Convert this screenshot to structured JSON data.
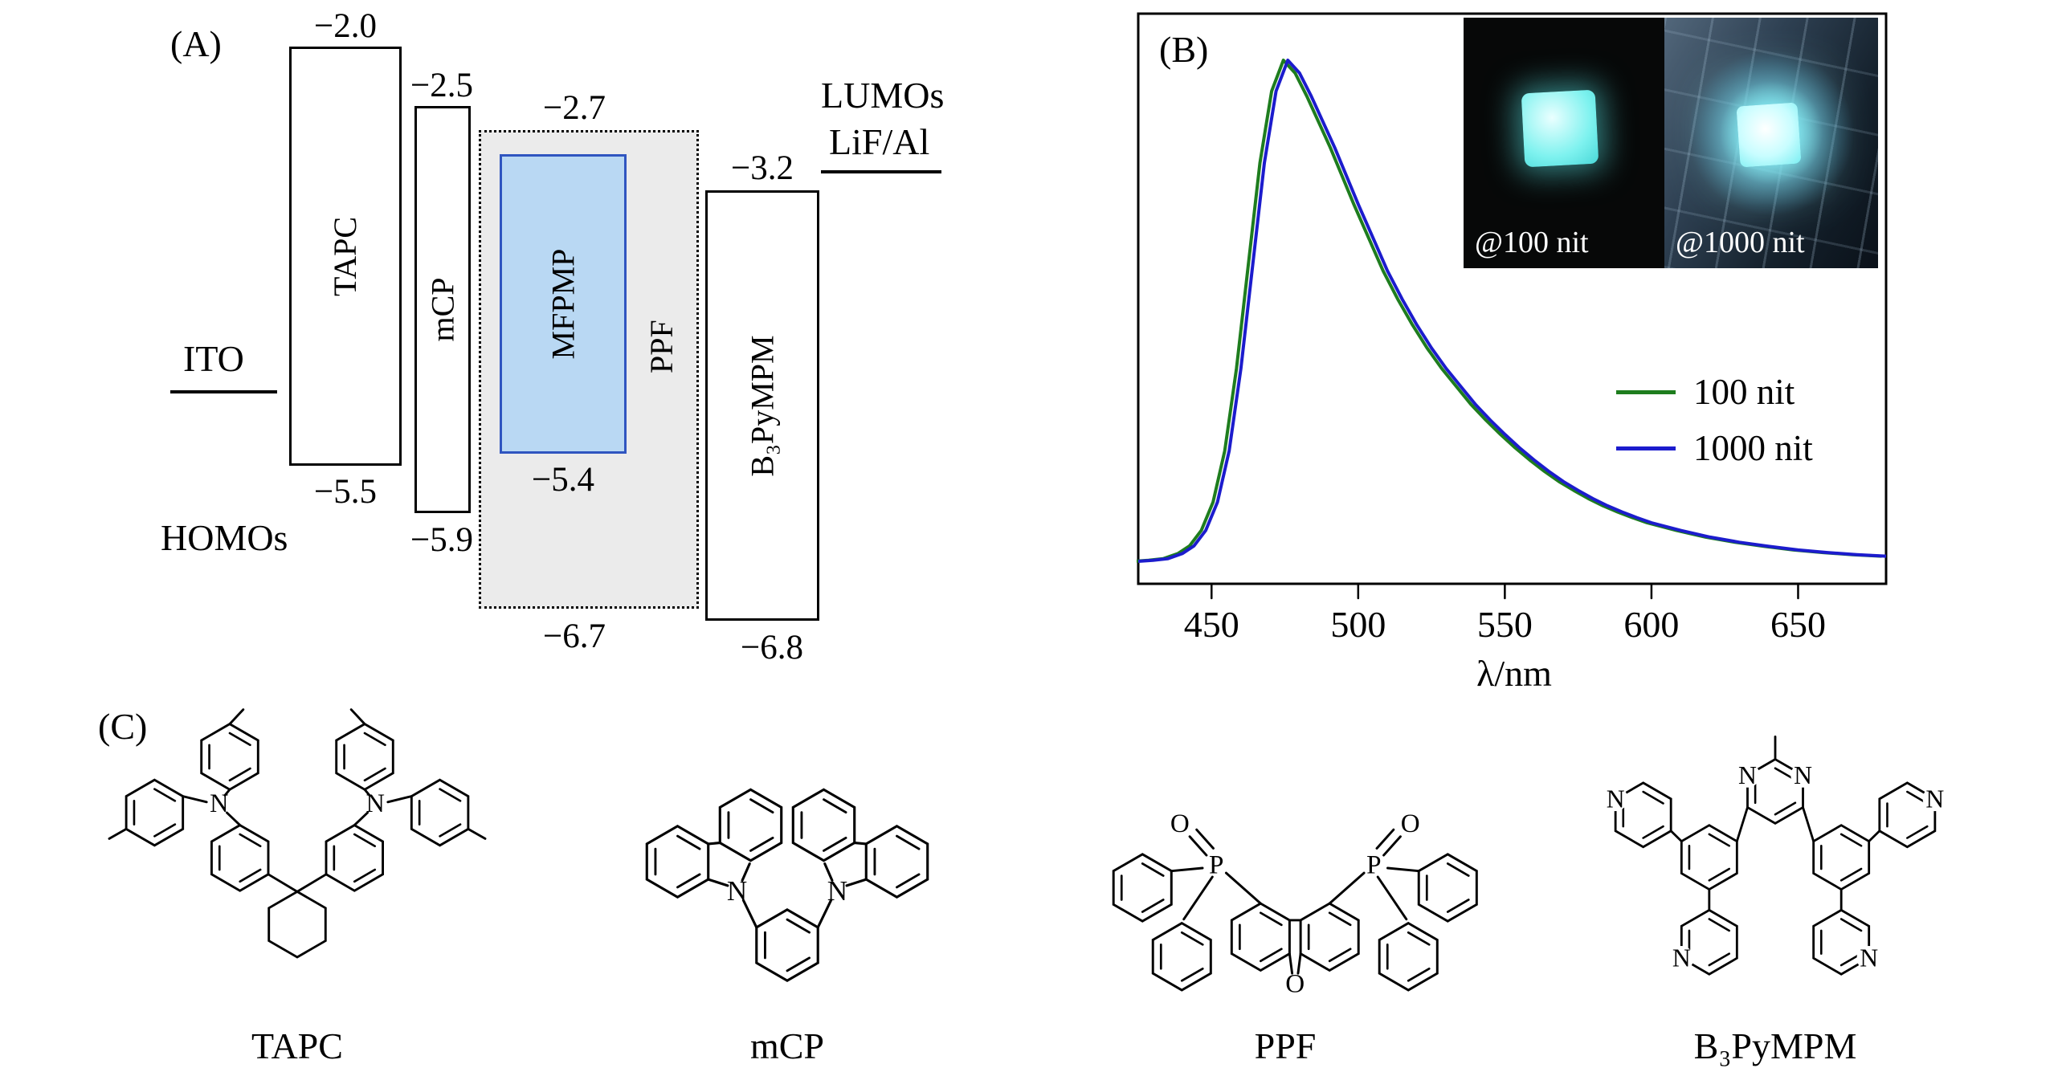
{
  "panel_a": {
    "label": "(A)",
    "homos_label": "HOMOs",
    "lumos_label": "LUMOs",
    "electrodes": {
      "anode": "ITO",
      "cathode": "LiF/Al"
    },
    "colors": {
      "mfpmp_fill": "#b9d8f3",
      "mfpmp_border": "#2f55c0",
      "ppf_fill": "#ebebeb"
    },
    "layers": [
      {
        "name": "TAPC",
        "lumo": "−2.0",
        "homo": "−5.5"
      },
      {
        "name": "mCP",
        "lumo": "−2.5",
        "homo": "−5.9"
      },
      {
        "name": "MFPMP",
        "lumo": "",
        "homo": "−5.4"
      },
      {
        "name": "PPF",
        "lumo": "−2.7",
        "homo": "−6.7"
      },
      {
        "name": "B₃PyMPM",
        "lumo": "−3.2",
        "homo": "−6.8"
      }
    ]
  },
  "panel_b": {
    "label": "(B)",
    "xlabel": "λ/nm",
    "inset_photos": [
      {
        "caption": "@100 nit"
      },
      {
        "caption": "@1000 nit"
      }
    ],
    "legend": [
      {
        "label": "100 nit"
      },
      {
        "label": "1000 nit"
      }
    ]
  },
  "chart_data": {
    "type": "line",
    "title": "",
    "xlabel": "λ/nm",
    "ylabel": "",
    "xlim": [
      425,
      680
    ],
    "ylim": [
      0,
      1.1
    ],
    "xticks": [
      450,
      500,
      550,
      600,
      650
    ],
    "grid": false,
    "legend_position": "center-right",
    "series": [
      {
        "name": "100 nit",
        "color": "#1e7d1e",
        "x": [
          423.5,
          428.5,
          433.5,
          438.5,
          442.5,
          446.5,
          450.5,
          454.5,
          458.5,
          462.5,
          466.5,
          470.5,
          474.5,
          478.5,
          482.5,
          486.5,
          490.5,
          494.5,
          498.5,
          503.5,
          508.5,
          513.5,
          518.5,
          523.5,
          528.5,
          533.5,
          538.5,
          543.5,
          548.5,
          553.5,
          558.5,
          563.5,
          568.5,
          573.5,
          578.5,
          583.5,
          588.5,
          593.5,
          598.5,
          608.5,
          618.5,
          628.5,
          638.5,
          648.5,
          658.5,
          668.5,
          678.5
        ],
        "y": [
          0.025,
          0.027,
          0.03,
          0.04,
          0.055,
          0.085,
          0.14,
          0.24,
          0.4,
          0.6,
          0.8,
          0.94,
          1.0,
          0.975,
          0.93,
          0.88,
          0.83,
          0.775,
          0.72,
          0.655,
          0.59,
          0.535,
          0.485,
          0.44,
          0.4,
          0.365,
          0.33,
          0.3,
          0.272,
          0.246,
          0.222,
          0.2,
          0.18,
          0.163,
          0.147,
          0.133,
          0.121,
          0.11,
          0.1,
          0.085,
          0.072,
          0.062,
          0.054,
          0.047,
          0.042,
          0.038,
          0.035
        ]
      },
      {
        "name": "1000 nit",
        "color": "#1c1ccd",
        "x": [
          425,
          430,
          435,
          440,
          444,
          448,
          452,
          456,
          460,
          464,
          468,
          472,
          476,
          480,
          484,
          488,
          492,
          496,
          500,
          505,
          510,
          515,
          520,
          525,
          530,
          535,
          540,
          545,
          550,
          555,
          560,
          565,
          570,
          575,
          580,
          585,
          590,
          595,
          600,
          610,
          620,
          630,
          640,
          650,
          660,
          670,
          680
        ],
        "y": [
          0.025,
          0.027,
          0.03,
          0.04,
          0.055,
          0.085,
          0.14,
          0.24,
          0.4,
          0.6,
          0.8,
          0.94,
          1.0,
          0.975,
          0.93,
          0.88,
          0.83,
          0.775,
          0.72,
          0.655,
          0.59,
          0.535,
          0.485,
          0.44,
          0.4,
          0.365,
          0.33,
          0.3,
          0.272,
          0.246,
          0.222,
          0.2,
          0.18,
          0.163,
          0.147,
          0.133,
          0.121,
          0.11,
          0.1,
          0.085,
          0.072,
          0.062,
          0.054,
          0.047,
          0.042,
          0.038,
          0.035
        ]
      }
    ]
  },
  "panel_c": {
    "label": "(C)",
    "molecules": [
      {
        "name": "TAPC",
        "atoms": [
          "N",
          "N"
        ]
      },
      {
        "name": "mCP",
        "atoms": [
          "N",
          "N"
        ]
      },
      {
        "name": "PPF",
        "atoms": [
          "O",
          "P",
          "O",
          "P",
          "O"
        ]
      },
      {
        "name": "B₃PyMPM",
        "atoms": [
          "N",
          "N",
          "N",
          "N",
          "N",
          "N"
        ]
      }
    ]
  }
}
